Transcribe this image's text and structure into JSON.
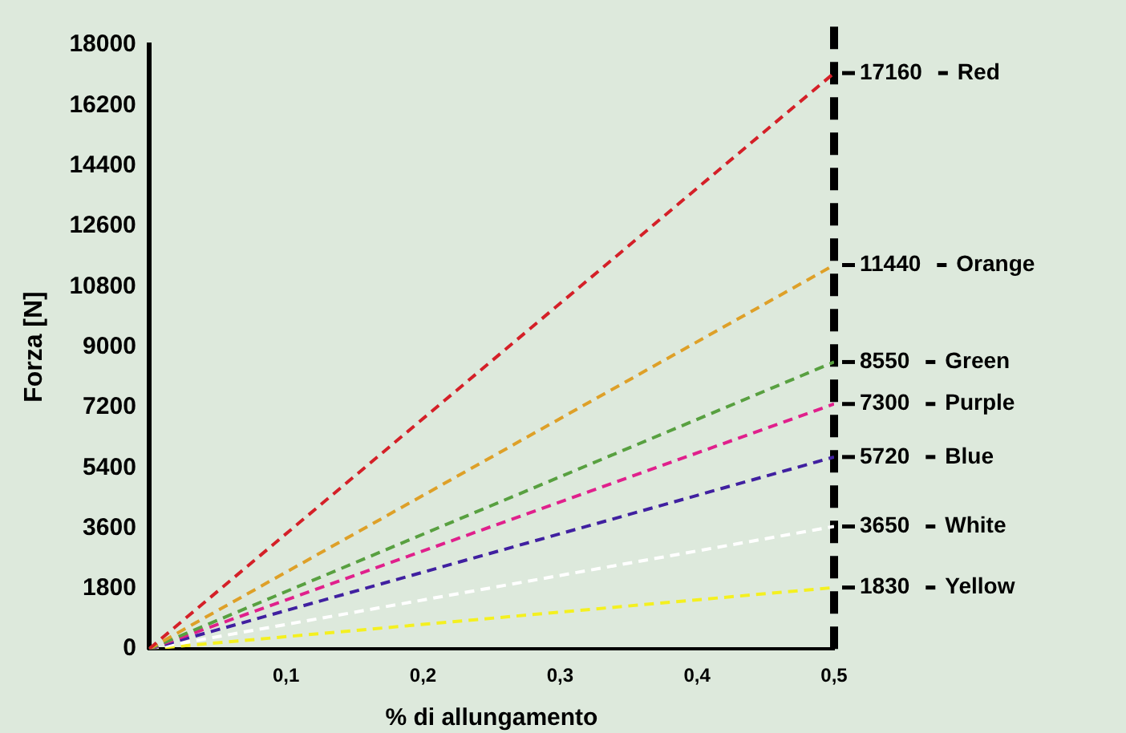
{
  "chart_data": {
    "type": "line",
    "xlabel": "% di allungamento",
    "ylabel": "Forza [N]",
    "xlim": [
      0,
      0.5
    ],
    "xticks": [
      {
        "value": 0.1,
        "label": "0,1"
      },
      {
        "value": 0.2,
        "label": "0,2"
      },
      {
        "value": 0.3,
        "label": "0,3"
      },
      {
        "value": 0.4,
        "label": "0,4"
      },
      {
        "value": 0.5,
        "label": "0,5"
      }
    ],
    "ylim": [
      0,
      18000
    ],
    "yticks": [
      0,
      1800,
      3600,
      5400,
      7200,
      9000,
      10800,
      12600,
      14400,
      16200,
      18000
    ],
    "x": [
      0,
      0.5
    ],
    "grid": false,
    "legend": false,
    "marker": "none",
    "line_style": "dashed",
    "ref_lines": [
      {
        "axis": "x",
        "value": 0.5,
        "color": "#000000",
        "line_style": "dashed"
      }
    ],
    "series": [
      {
        "name": "Red",
        "color": "#d42028",
        "values": [
          0,
          17160
        ],
        "value_labels": [
          null,
          "17160"
        ]
      },
      {
        "name": "Orange",
        "color": "#dea028",
        "values": [
          0,
          11440
        ],
        "value_labels": [
          null,
          "11440"
        ]
      },
      {
        "name": "Green",
        "color": "#58a040",
        "values": [
          0,
          8550
        ],
        "value_labels": [
          null,
          "8550"
        ]
      },
      {
        "name": "Purple",
        "color": "#e0208c",
        "values": [
          0,
          7300
        ],
        "value_labels": [
          null,
          "7300"
        ]
      },
      {
        "name": "Blue",
        "color": "#4020a0",
        "values": [
          0,
          5720
        ],
        "value_labels": [
          null,
          "5720"
        ]
      },
      {
        "name": "White",
        "color": "#ffffff",
        "values": [
          0,
          3650
        ],
        "value_labels": [
          null,
          "3650"
        ]
      },
      {
        "name": "Yellow",
        "color": "#f4f020",
        "values": [
          0,
          1830
        ],
        "value_labels": [
          null,
          "1830"
        ]
      }
    ]
  }
}
